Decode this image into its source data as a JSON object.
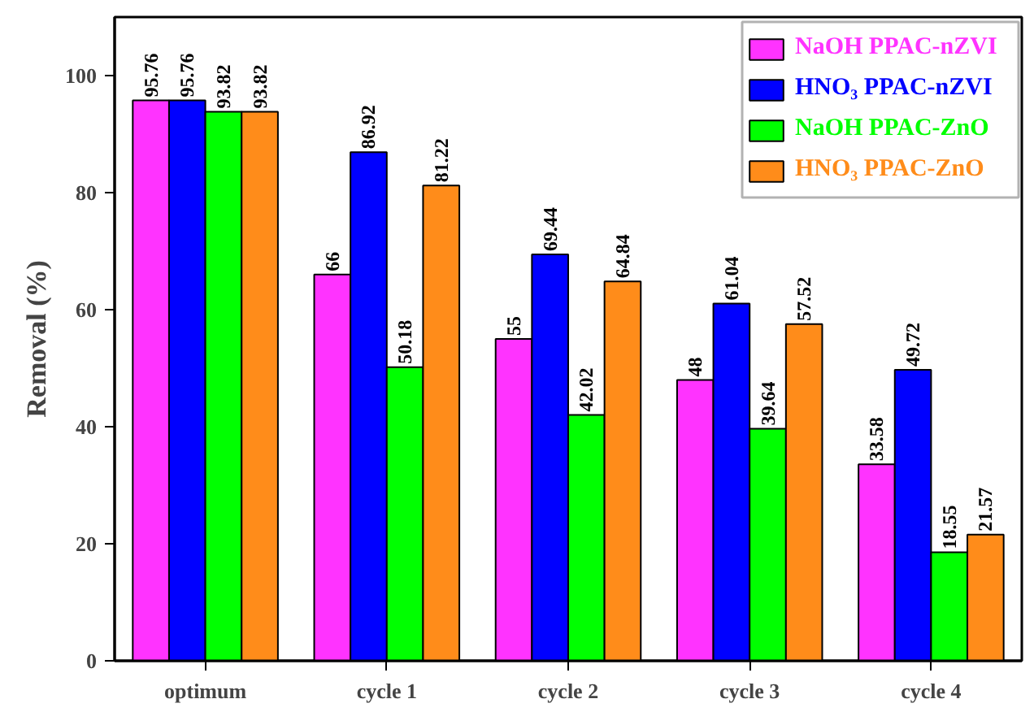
{
  "chart_data": {
    "type": "bar",
    "ylabel": "Removal (%)",
    "categories": [
      "optimum",
      "cycle 1",
      "cycle 2",
      "cycle 3",
      "cycle 4"
    ],
    "series": [
      {
        "name": "NaOH PPAC-nZVI",
        "color": "#ff33ff",
        "values": [
          95.76,
          66,
          55,
          48,
          33.58
        ]
      },
      {
        "name": "HNO₃ PPAC-nZVI",
        "color": "#0000ff",
        "values": [
          95.76,
          86.92,
          69.44,
          61.04,
          49.72
        ]
      },
      {
        "name": "NaOH PPAC-ZnO",
        "color": "#00ff00",
        "values": [
          93.82,
          50.18,
          42.02,
          39.64,
          18.55
        ]
      },
      {
        "name": "HNO₃ PPAC-ZnO",
        "color": "#ff8c1a",
        "values": [
          93.82,
          81.22,
          64.84,
          57.52,
          21.57
        ]
      }
    ],
    "ylim": [
      0,
      110
    ],
    "yticks": [
      0,
      20,
      40,
      60,
      80,
      100
    ],
    "legend": "top right",
    "data_labels": true,
    "grid": false
  }
}
